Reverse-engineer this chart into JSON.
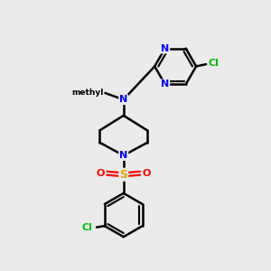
{
  "background_color": "#ebebeb",
  "bond_color": "#000000",
  "N_color": "#0000ff",
  "Cl_color": "#00bb00",
  "S_color": "#ddaa00",
  "O_color": "#ff0000",
  "bond_width": 1.8,
  "fig_width": 3.0,
  "fig_height": 3.0,
  "dpi": 100,
  "xlim": [
    0,
    10
  ],
  "ylim": [
    0,
    10
  ]
}
